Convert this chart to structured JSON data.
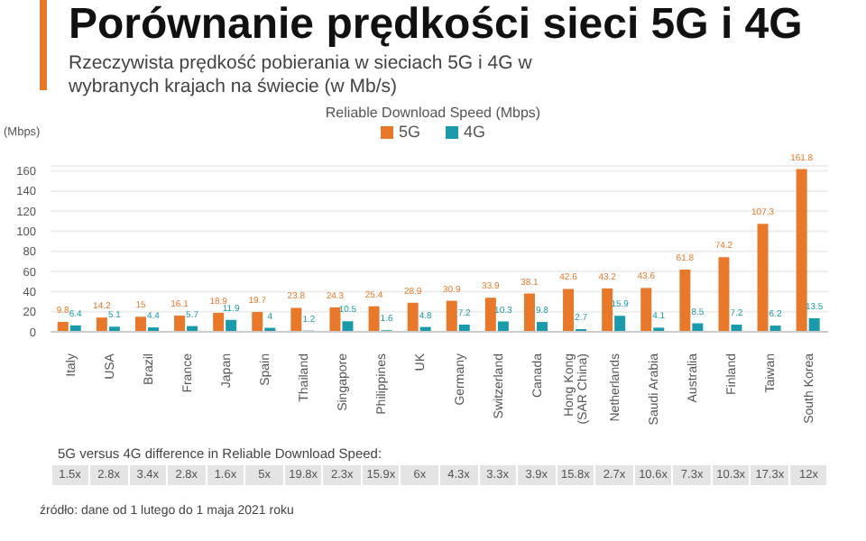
{
  "chart_data": {
    "type": "bar",
    "title": "Porównanie prędkości sieci 5G i 4G",
    "subtitle": "Rzeczywista prędkość pobierania w sieciach 5G i 4G w wybranych krajach na świecie (w Mb/s)",
    "ylabel": "(Mbps)",
    "categories": [
      "Italy",
      "USA",
      "Brazil",
      "France",
      "Japan",
      "Spain",
      "Thailand",
      "Singapore",
      "Philippines",
      "UK",
      "Germany",
      "Switzerland",
      "Canada",
      "Hong Kong (SAR China)",
      "Netherlands",
      "Saudi Arabia",
      "Australia",
      "Finland",
      "Taiwan",
      "South Korea"
    ],
    "series": [
      {
        "name": "5G",
        "color": "#e8792a",
        "values": [
          9.8,
          14.2,
          15.0,
          16.1,
          18.9,
          19.7,
          23.8,
          24.3,
          25.4,
          28.9,
          30.9,
          33.9,
          38.1,
          42.6,
          43.2,
          43.6,
          61.8,
          74.2,
          107.3,
          161.8
        ]
      },
      {
        "name": "4G",
        "color": "#1a9aaa",
        "values": [
          6.4,
          5.1,
          4.4,
          5.7,
          11.9,
          4.0,
          1.2,
          10.5,
          1.6,
          4.8,
          7.2,
          10.3,
          9.8,
          2.7,
          15.9,
          4.1,
          8.5,
          7.2,
          6.2,
          13.5
        ]
      }
    ],
    "ylim": [
      0,
      165
    ],
    "yticks": [
      0,
      20,
      40,
      60,
      80,
      100,
      120,
      140,
      160
    ],
    "grid": "y",
    "legend": "top",
    "data_labels": true,
    "annotations": [
      "Reliable Download Speed (Mbps)",
      "5G versus 4G difference in Reliable Download Speed:",
      "1.5x",
      "2.8x",
      "3.4x",
      "2.8x",
      "1.6x",
      "5x",
      "19.8x",
      "2.3x",
      "15.9x",
      "6x",
      "4.3x",
      "3.3x",
      "3.9x",
      "15.8x",
      "2.7x",
      "10.6x",
      "7.3x",
      "10.3x",
      "17.3x",
      "12x",
      "źródło: dane od 1 lutego do 1 maja 2021 roku"
    ]
  }
}
